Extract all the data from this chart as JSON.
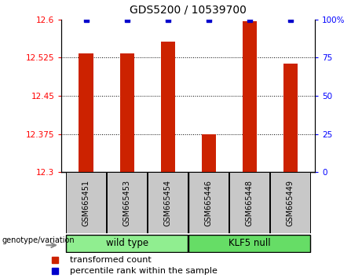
{
  "title": "GDS5200 / 10539700",
  "samples": [
    "GSM665451",
    "GSM665453",
    "GSM665454",
    "GSM665446",
    "GSM665448",
    "GSM665449"
  ],
  "red_values": [
    12.533,
    12.533,
    12.557,
    12.375,
    12.597,
    12.513
  ],
  "blue_values": [
    100,
    100,
    100,
    100,
    100,
    100
  ],
  "ylim_left": [
    12.3,
    12.6
  ],
  "ylim_right": [
    0,
    100
  ],
  "yticks_left": [
    12.3,
    12.375,
    12.45,
    12.525,
    12.6
  ],
  "yticks_right": [
    0,
    25,
    50,
    75,
    100
  ],
  "ytick_labels_left": [
    "12.3",
    "12.375",
    "12.45",
    "12.525",
    "12.6"
  ],
  "ytick_labels_right": [
    "0",
    "25",
    "50",
    "75",
    "100%"
  ],
  "bar_color": "#CC2200",
  "dot_color": "#0000CC",
  "bar_width": 0.35,
  "legend_red_label": "transformed count",
  "legend_blue_label": "percentile rank within the sample",
  "genotype_label": "genotype/variation",
  "wildtype_color": "#90EE90",
  "klf5_color": "#66DD66",
  "label_bg_color": "#C8C8C8",
  "grid_yticks": [
    12.375,
    12.45,
    12.525
  ]
}
